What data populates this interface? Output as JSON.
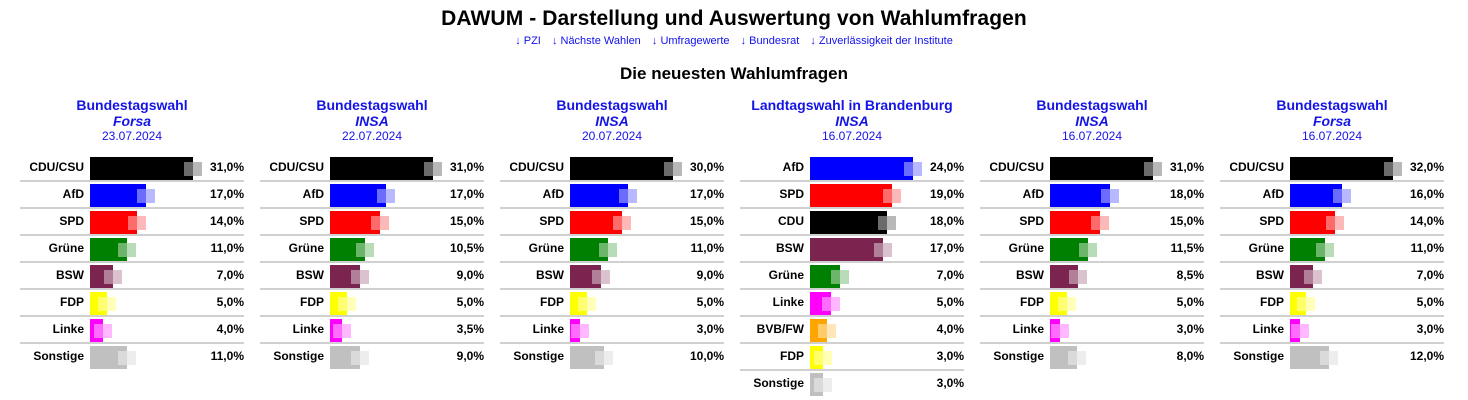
{
  "header": {
    "title": "DAWUM - Darstellung und Auswertung von Wahlumfragen",
    "nav": [
      {
        "arrow": "↓",
        "label": "PZI"
      },
      {
        "arrow": "↓",
        "label": "Nächste Wahlen"
      },
      {
        "arrow": "↓",
        "label": "Umfragewerte"
      },
      {
        "arrow": "↓",
        "label": "Bundesrat"
      },
      {
        "arrow": "↓",
        "label": "Zuverlässigkeit der Institute"
      }
    ],
    "subtitle": "Die neuesten Wahlumfragen"
  },
  "party_colors": {
    "CDU/CSU": "#000000",
    "CDU": "#000000",
    "AfD": "#0000ff",
    "SPD": "#ff0000",
    "Grüne": "#008000",
    "BSW": "#7b2450",
    "FDP": "#ffff00",
    "Linke": "#ff00ff",
    "BVB/FW": "#ffa500",
    "Sonstige": "#c0c0c0"
  },
  "polls": [
    {
      "parliament": "Bundestagswahl",
      "institute": "Forsa",
      "date": "23.07.2024",
      "results": [
        {
          "party": "CDU/CSU",
          "value": 31.0,
          "label": "31,0%"
        },
        {
          "party": "AfD",
          "value": 17.0,
          "label": "17,0%"
        },
        {
          "party": "SPD",
          "value": 14.0,
          "label": "14,0%"
        },
        {
          "party": "Grüne",
          "value": 11.0,
          "label": "11,0%"
        },
        {
          "party": "BSW",
          "value": 7.0,
          "label": "7,0%"
        },
        {
          "party": "FDP",
          "value": 5.0,
          "label": "5,0%"
        },
        {
          "party": "Linke",
          "value": 4.0,
          "label": "4,0%"
        },
        {
          "party": "Sonstige",
          "value": 11.0,
          "label": "11,0%"
        }
      ]
    },
    {
      "parliament": "Bundestagswahl",
      "institute": "INSA",
      "date": "22.07.2024",
      "results": [
        {
          "party": "CDU/CSU",
          "value": 31.0,
          "label": "31,0%"
        },
        {
          "party": "AfD",
          "value": 17.0,
          "label": "17,0%"
        },
        {
          "party": "SPD",
          "value": 15.0,
          "label": "15,0%"
        },
        {
          "party": "Grüne",
          "value": 10.5,
          "label": "10,5%"
        },
        {
          "party": "BSW",
          "value": 9.0,
          "label": "9,0%"
        },
        {
          "party": "FDP",
          "value": 5.0,
          "label": "5,0%"
        },
        {
          "party": "Linke",
          "value": 3.5,
          "label": "3,5%"
        },
        {
          "party": "Sonstige",
          "value": 9.0,
          "label": "9,0%"
        }
      ]
    },
    {
      "parliament": "Bundestagswahl",
      "institute": "INSA",
      "date": "20.07.2024",
      "results": [
        {
          "party": "CDU/CSU",
          "value": 30.0,
          "label": "30,0%"
        },
        {
          "party": "AfD",
          "value": 17.0,
          "label": "17,0%"
        },
        {
          "party": "SPD",
          "value": 15.0,
          "label": "15,0%"
        },
        {
          "party": "Grüne",
          "value": 11.0,
          "label": "11,0%"
        },
        {
          "party": "BSW",
          "value": 9.0,
          "label": "9,0%"
        },
        {
          "party": "FDP",
          "value": 5.0,
          "label": "5,0%"
        },
        {
          "party": "Linke",
          "value": 3.0,
          "label": "3,0%"
        },
        {
          "party": "Sonstige",
          "value": 10.0,
          "label": "10,0%"
        }
      ]
    },
    {
      "parliament": "Landtagswahl in Brandenburg",
      "institute": "INSA",
      "date": "16.07.2024",
      "results": [
        {
          "party": "AfD",
          "value": 24.0,
          "label": "24,0%"
        },
        {
          "party": "SPD",
          "value": 19.0,
          "label": "19,0%"
        },
        {
          "party": "CDU",
          "value": 18.0,
          "label": "18,0%"
        },
        {
          "party": "BSW",
          "value": 17.0,
          "label": "17,0%"
        },
        {
          "party": "Grüne",
          "value": 7.0,
          "label": "7,0%"
        },
        {
          "party": "Linke",
          "value": 5.0,
          "label": "5,0%"
        },
        {
          "party": "BVB/FW",
          "value": 4.0,
          "label": "4,0%"
        },
        {
          "party": "FDP",
          "value": 3.0,
          "label": "3,0%"
        },
        {
          "party": "Sonstige",
          "value": 3.0,
          "label": "3,0%"
        }
      ]
    },
    {
      "parliament": "Bundestagswahl",
      "institute": "INSA",
      "date": "16.07.2024",
      "results": [
        {
          "party": "CDU/CSU",
          "value": 31.0,
          "label": "31,0%"
        },
        {
          "party": "AfD",
          "value": 18.0,
          "label": "18,0%"
        },
        {
          "party": "SPD",
          "value": 15.0,
          "label": "15,0%"
        },
        {
          "party": "Grüne",
          "value": 11.5,
          "label": "11,5%"
        },
        {
          "party": "BSW",
          "value": 8.5,
          "label": "8,5%"
        },
        {
          "party": "FDP",
          "value": 5.0,
          "label": "5,0%"
        },
        {
          "party": "Linke",
          "value": 3.0,
          "label": "3,0%"
        },
        {
          "party": "Sonstige",
          "value": 8.0,
          "label": "8,0%"
        }
      ]
    },
    {
      "parliament": "Bundestagswahl",
      "institute": "Forsa",
      "date": "16.07.2024",
      "results": [
        {
          "party": "CDU/CSU",
          "value": 32.0,
          "label": "32,0%"
        },
        {
          "party": "AfD",
          "value": 16.0,
          "label": "16,0%"
        },
        {
          "party": "SPD",
          "value": 14.0,
          "label": "14,0%"
        },
        {
          "party": "Grüne",
          "value": 11.0,
          "label": "11,0%"
        },
        {
          "party": "BSW",
          "value": 7.0,
          "label": "7,0%"
        },
        {
          "party": "FDP",
          "value": 5.0,
          "label": "5,0%"
        },
        {
          "party": "Linke",
          "value": 3.0,
          "label": "3,0%"
        },
        {
          "party": "Sonstige",
          "value": 12.0,
          "label": "12,0%"
        }
      ]
    }
  ]
}
